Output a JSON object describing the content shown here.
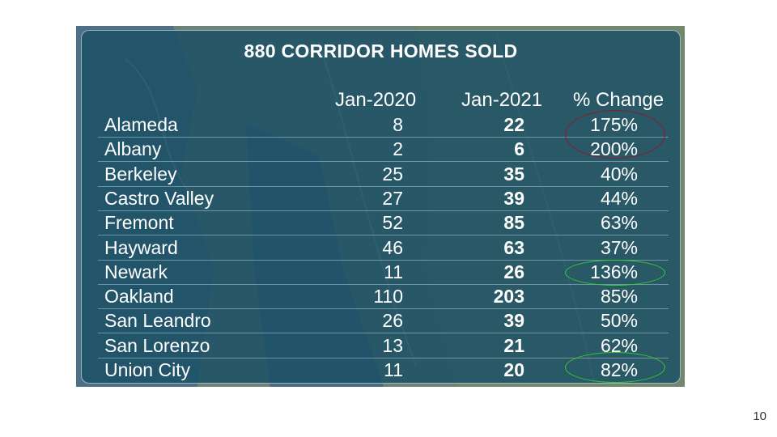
{
  "table": {
    "title": "880 CORRIDOR HOMES SOLD",
    "columns": [
      "Jan-2020",
      "Jan-2021",
      "% Change"
    ],
    "rows": [
      {
        "city": "Alameda",
        "jan2020": "8",
        "jan2021": "22",
        "change": "175%"
      },
      {
        "city": "Albany",
        "jan2020": "2",
        "jan2021": "6",
        "change": "200%"
      },
      {
        "city": "Berkeley",
        "jan2020": "25",
        "jan2021": "35",
        "change": "40%"
      },
      {
        "city": "Castro Valley",
        "jan2020": "27",
        "jan2021": "39",
        "change": "44%"
      },
      {
        "city": "Fremont",
        "jan2020": "52",
        "jan2021": "85",
        "change": "63%"
      },
      {
        "city": "Hayward",
        "jan2020": "46",
        "jan2021": "63",
        "change": "37%"
      },
      {
        "city": "Newark",
        "jan2020": "11",
        "jan2021": "26",
        "change": "136%"
      },
      {
        "city": "Oakland",
        "jan2020": "110",
        "jan2021": "203",
        "change": "85%"
      },
      {
        "city": "San Leandro",
        "jan2020": "26",
        "jan2021": "39",
        "change": "50%"
      },
      {
        "city": "San Lorenzo",
        "jan2020": "13",
        "jan2021": "21",
        "change": "62%"
      },
      {
        "city": "Union City",
        "jan2020": "11",
        "jan2021": "20",
        "change": "82%"
      }
    ]
  },
  "highlights": {
    "red_color": "#8b1b2c",
    "green_color": "#2fd02f"
  },
  "page_number": "10"
}
